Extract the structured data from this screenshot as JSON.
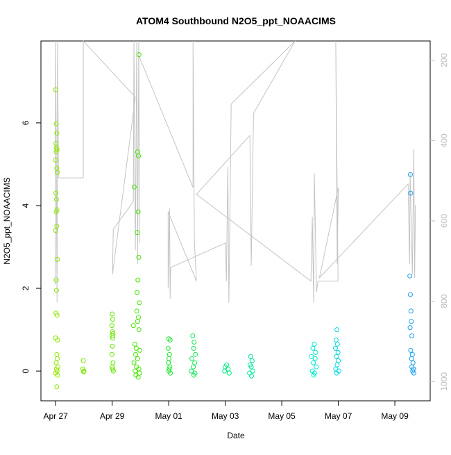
{
  "chart_data": {
    "type": "scatter",
    "title": "ATOM4 Southbound N2O5_ppt_NOAACIMS",
    "x_label": "Date",
    "y_label": "N2O5_ppt_NOAACIMS",
    "xlim": [
      -0.52,
      13.25
    ],
    "xticks": [
      {
        "value": 0,
        "label": "Apr 27"
      },
      {
        "value": 2,
        "label": "Apr 29"
      },
      {
        "value": 4,
        "label": "May 01"
      },
      {
        "value": 6,
        "label": "May 03"
      },
      {
        "value": 8,
        "label": "May 05"
      },
      {
        "value": 10,
        "label": "May 07"
      },
      {
        "value": 12,
        "label": "May 09"
      }
    ],
    "ylim": [
      -0.72,
      7.98
    ],
    "yticks": [
      0,
      2,
      4,
      6
    ],
    "y2lim": [
      1048,
      152
    ],
    "y2ticks": [
      200,
      400,
      600,
      800,
      1000
    ],
    "series": [
      {
        "color": "#8ee600",
        "x": [
          0.0,
          0.02,
          0.04,
          0.01,
          0.03,
          0.05,
          0.02,
          0.0,
          0.04,
          0.06,
          0.01,
          0.03,
          0.05,
          0.02,
          0.04,
          0.0,
          0.06,
          0.02,
          0.03,
          0.01,
          0.05,
          0.0,
          0.07,
          0.04,
          0.06,
          0.02,
          0.08,
          0.03,
          0.05,
          0.0,
          0.07,
          0.04
        ],
        "values": [
          6.8,
          5.98,
          5.75,
          5.5,
          5.4,
          5.35,
          5.3,
          5.1,
          4.9,
          4.8,
          4.3,
          4.15,
          3.9,
          3.85,
          3.5,
          3.4,
          2.7,
          2.2,
          1.95,
          1.4,
          1.35,
          0.8,
          0.75,
          0.4,
          0.3,
          0.2,
          0.1,
          0.05,
          0,
          -0.05,
          -0.1,
          -0.38
        ]
      },
      {
        "color": "#7ae600",
        "x": [
          0.98,
          0.96,
          1.0,
          0.99
        ],
        "values": [
          0.25,
          0.05,
          0,
          -0.02
        ]
      },
      {
        "color": "#66e600",
        "x": [
          2.0,
          2.02,
          1.99,
          2.01,
          2.03,
          2.0,
          2.02,
          2.01,
          1.99,
          2.03,
          2.0,
          2.02,
          2.04
        ],
        "values": [
          1.38,
          1.25,
          1.1,
          0.95,
          0.9,
          0.85,
          0.8,
          0.6,
          0.4,
          0.2,
          0.1,
          0.05,
          0
        ]
      },
      {
        "color": "#44e600",
        "x": [
          2.95,
          2.9,
          2.93,
          2.78,
          2.92,
          2.89,
          2.94,
          2.91,
          2.88,
          2.96,
          2.87,
          2.93,
          2.9,
          2.75,
          2.95,
          2.8,
          2.85,
          2.98,
          2.83,
          2.9,
          2.77,
          2.86,
          2.94,
          2.81,
          2.97,
          2.84,
          2.92
        ],
        "values": [
          7.65,
          5.3,
          5.2,
          4.45,
          3.85,
          3.35,
          2.75,
          2.2,
          1.9,
          1.65,
          1.45,
          1.3,
          1.2,
          1.1,
          1.0,
          0.65,
          0.55,
          0.5,
          0.4,
          0.3,
          0.2,
          0.1,
          0.05,
          0,
          -0.05,
          -0.1,
          -0.15
        ]
      },
      {
        "color": "#22e633",
        "x": [
          4.0,
          4.05,
          3.98,
          4.03,
          4.01,
          3.99,
          4.04,
          4.02,
          4.0,
          4.06
        ],
        "values": [
          0.78,
          0.75,
          0.55,
          0.4,
          0.3,
          0.2,
          0.1,
          0.05,
          0,
          -0.05
        ]
      },
      {
        "color": "#11e655",
        "x": [
          4.85,
          4.9,
          4.88,
          4.95,
          4.82,
          4.92,
          4.87,
          4.8,
          4.93,
          4.89
        ],
        "values": [
          0.85,
          0.7,
          0.55,
          0.4,
          0.3,
          0.2,
          0.1,
          0,
          -0.05,
          -0.1
        ]
      },
      {
        "color": "#00e680",
        "x": [
          6.05,
          6.0,
          6.1,
          5.98,
          6.14
        ],
        "values": [
          0.15,
          0.1,
          0.05,
          0,
          -0.05
        ]
      },
      {
        "color": "#00e699",
        "x": [
          6.9,
          6.95,
          6.88,
          6.92,
          6.97,
          6.86,
          6.93
        ],
        "values": [
          0.35,
          0.25,
          0.15,
          0.1,
          0,
          -0.05,
          -0.12
        ]
      },
      {
        "color": "#00e6cc",
        "x": [
          9.15,
          9.1,
          9.2,
          9.05,
          9.18,
          9.12,
          9.22,
          9.08,
          9.16,
          9.13
        ],
        "values": [
          0.65,
          0.55,
          0.45,
          0.35,
          0.3,
          0.2,
          0.1,
          0,
          -0.05,
          -0.1
        ]
      },
      {
        "color": "#00d9e0",
        "x": [
          9.95,
          9.92,
          9.97,
          9.9,
          9.99,
          9.93,
          10.0,
          9.96,
          9.91,
          10.02,
          9.94
        ],
        "values": [
          1.0,
          0.75,
          0.65,
          0.55,
          0.45,
          0.35,
          0.25,
          0.15,
          0.05,
          0,
          -0.05
        ]
      },
      {
        "color": "#1a9ef0",
        "x": [
          12.55,
          12.56,
          12.53,
          12.55,
          12.57,
          12.58,
          12.54,
          12.6,
          12.56,
          12.62,
          12.59,
          12.64,
          12.6,
          12.66,
          12.63,
          12.67
        ],
        "values": [
          4.75,
          4.3,
          2.3,
          1.85,
          1.45,
          1.2,
          1.05,
          0.85,
          0.5,
          0.4,
          0.3,
          0.2,
          0.1,
          0.05,
          0,
          -0.05
        ]
      },
      {
        "type": "line",
        "axis": "y2",
        "color": "#c4c4c4",
        "x": [
          -0.02,
          0,
          0.05,
          0.07,
          0.1,
          0.98,
          0.98,
          2.82,
          2.01,
          2.04,
          2.75,
          2.77,
          2.82,
          2.87,
          2.9,
          2.94,
          2.97,
          2.94,
          4.86,
          4.86,
          4.91,
          4.98,
          3.98,
          3.98,
          4.03,
          4.05,
          4.07,
          6.01,
          6.04,
          6.09,
          6.13,
          6.21,
          8.47,
          7.0,
          6.92,
          6.87,
          4.98,
          9.03,
          9.08,
          9.13,
          9.15,
          9.23,
          9.28,
          9.99,
          9.91,
          9.96,
          10.0,
          9.33,
          12.47,
          12.52,
          12.54,
          12.62,
          12.67,
          12.7,
          12.73
        ],
        "values": [
          759,
          152,
          803,
          152,
          493,
          493,
          152,
          292,
          733,
          621,
          552,
          152,
          673,
          152,
          707,
          152,
          655,
          188,
          517,
          152,
          655,
          750,
          577,
          768,
          569,
          794,
          716,
          655,
          750,
          465,
          804,
          309,
          152,
          332,
          712,
          387,
          534,
          750,
          590,
          803,
          482,
          777,
          750,
          750,
          152,
          707,
          517,
          742,
          508,
          707,
          482,
          733,
          422,
          742,
          560
        ]
      }
    ]
  }
}
